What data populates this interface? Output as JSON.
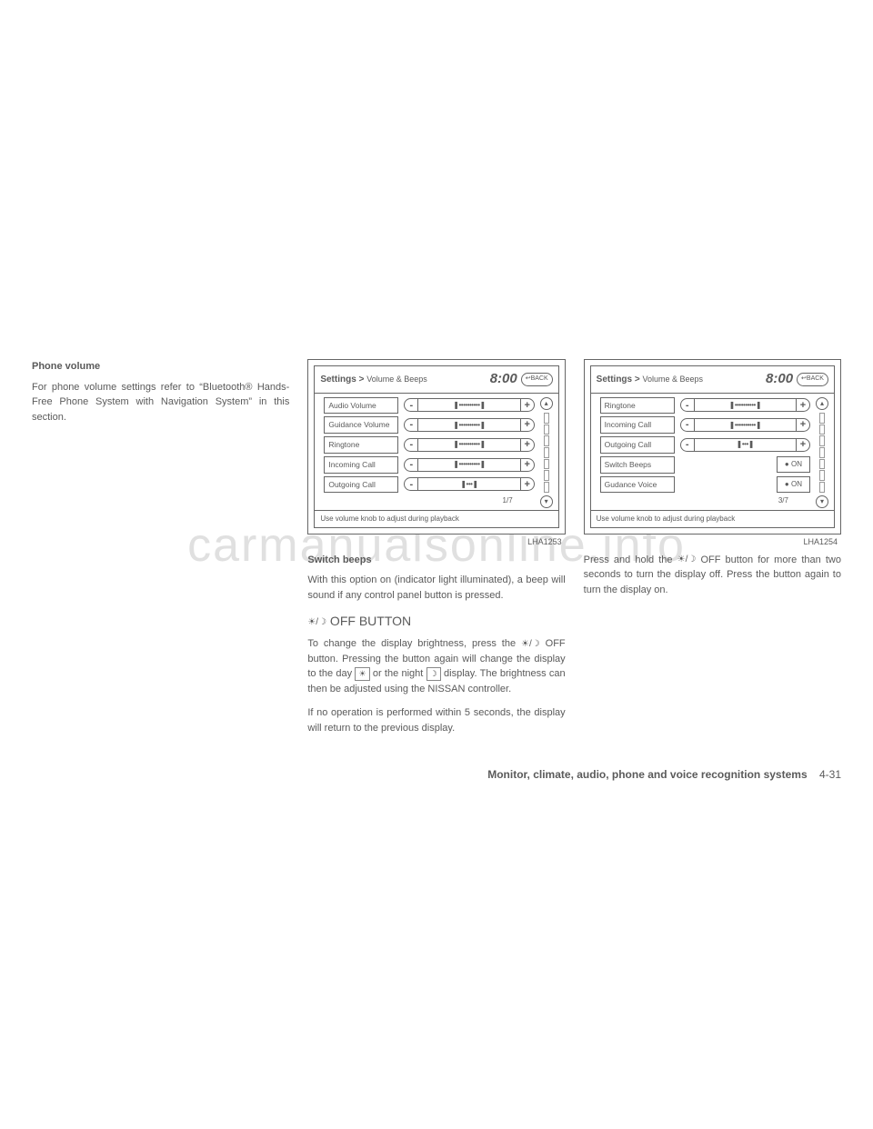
{
  "watermark": "carmanualsonline.info",
  "col1": {
    "heading": "Phone volume",
    "para": "For phone volume settings refer to “Bluetooth® Hands-Free Phone System with Navigation System” in this section."
  },
  "fig1": {
    "label": "LHA1253",
    "breadcrumb_main": "Settings",
    "breadcrumb_sub": "Volume & Beeps",
    "clock": "8:00",
    "back": "↩BACK",
    "rows": [
      {
        "label": "Audio Volume",
        "type": "slider",
        "dots": "❚••••••••••❚"
      },
      {
        "label": "Guidance Volume",
        "type": "slider",
        "dots": "❚••••••••••❚"
      },
      {
        "label": "Ringtone",
        "type": "slider",
        "dots": "❚••••••••••❚"
      },
      {
        "label": "Incoming Call",
        "type": "slider",
        "dots": "❚••••••••••❚"
      },
      {
        "label": "Outgoing Call",
        "type": "slider",
        "dots": "❚•••❚"
      }
    ],
    "page": "1/7",
    "footer": "Use volume knob to adjust during playback"
  },
  "col2": {
    "heading": "Switch beeps",
    "para1": "With this option on (indicator light illuminated), a beep will sound if any control panel button is pressed.",
    "subhead_prefix_icon": "☀/☽",
    "subhead": " OFF BUTTON",
    "para2a": "To change the display brightness, press the ",
    "para2b": " OFF button. Pressing the button again will change the display to the day ",
    "para2c": " or the night ",
    "para2d": " display. The brightness can then be adjusted using the NISSAN controller.",
    "para3": "If no operation is performed within 5 seconds, the display will return to the previous display.",
    "icon_daynight": "☀/☽",
    "icon_day": "☀",
    "icon_night": "☽"
  },
  "fig2": {
    "label": "LHA1254",
    "breadcrumb_main": "Settings",
    "breadcrumb_sub": "Volume & Beeps",
    "clock": "8:00",
    "back": "↩BACK",
    "rows": [
      {
        "label": "Ringtone",
        "type": "slider",
        "dots": "❚••••••••••❚"
      },
      {
        "label": "Incoming Call",
        "type": "slider",
        "dots": "❚••••••••••❚"
      },
      {
        "label": "Outgoing Call",
        "type": "slider",
        "dots": "❚•••❚"
      },
      {
        "label": "Switch Beeps",
        "type": "toggle",
        "value": "● ON"
      },
      {
        "label": "Gudance Voice",
        "type": "toggle",
        "value": "● ON"
      }
    ],
    "page": "3/7",
    "footer": "Use volume knob to adjust during playback"
  },
  "col3": {
    "para_a": "Press and hold the ",
    "para_b": " OFF button for more than two seconds to turn the display off. Press the button again to turn the display on.",
    "icon_daynight": "☀/☽"
  },
  "footer": {
    "section": "Monitor, climate, audio, phone and voice recognition systems",
    "page": "4-31"
  }
}
